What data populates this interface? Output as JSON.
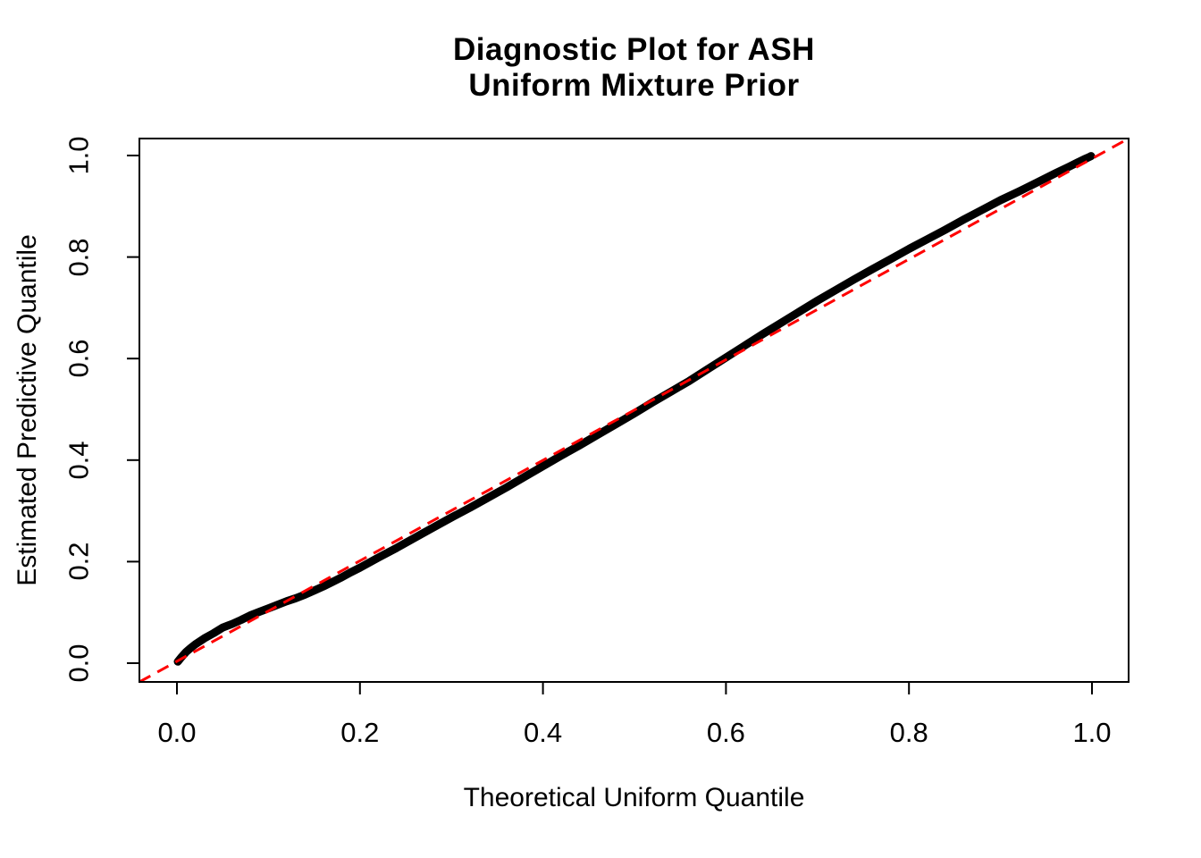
{
  "chart_data": {
    "type": "scatter",
    "subtype": "qq-plot",
    "title_line1": "Diagnostic Plot for ASH",
    "title_line2": "Uniform Mixture Prior",
    "xlabel": "Theoretical Uniform Quantile",
    "ylabel": "Estimated Predictive Quantile",
    "xlim": [
      -0.04,
      1.04
    ],
    "ylim": [
      -0.04,
      1.04
    ],
    "grid": false,
    "legend_position": "none",
    "x_ticks": {
      "values": [
        0.0,
        0.2,
        0.4,
        0.6,
        0.8,
        1.0
      ],
      "labels": [
        "0.0",
        "0.2",
        "0.4",
        "0.6",
        "0.8",
        "1.0"
      ]
    },
    "y_ticks": {
      "values": [
        0.0,
        0.2,
        0.4,
        0.6,
        0.8,
        1.0
      ],
      "labels": [
        "0.0",
        "0.2",
        "0.4",
        "0.6",
        "0.8",
        "1.0"
      ]
    },
    "reference_line": {
      "type": "identity",
      "equation": "y = x",
      "color": "#FF0000",
      "style": "dashed"
    },
    "series": [
      {
        "name": "estimated predictive quantiles",
        "color": "#000000",
        "marker": "point",
        "points": [
          [
            0.001,
            0.003
          ],
          [
            0.005,
            0.012
          ],
          [
            0.01,
            0.022
          ],
          [
            0.015,
            0.03
          ],
          [
            0.02,
            0.037
          ],
          [
            0.03,
            0.049
          ],
          [
            0.04,
            0.059
          ],
          [
            0.05,
            0.07
          ],
          [
            0.06,
            0.077
          ],
          [
            0.07,
            0.085
          ],
          [
            0.08,
            0.094
          ],
          [
            0.09,
            0.101
          ],
          [
            0.1,
            0.108
          ],
          [
            0.11,
            0.115
          ],
          [
            0.12,
            0.122
          ],
          [
            0.13,
            0.128
          ],
          [
            0.14,
            0.135
          ],
          [
            0.15,
            0.143
          ],
          [
            0.16,
            0.151
          ],
          [
            0.17,
            0.16
          ],
          [
            0.18,
            0.169
          ],
          [
            0.19,
            0.179
          ],
          [
            0.2,
            0.188
          ],
          [
            0.22,
            0.208
          ],
          [
            0.24,
            0.227
          ],
          [
            0.26,
            0.247
          ],
          [
            0.28,
            0.267
          ],
          [
            0.3,
            0.287
          ],
          [
            0.32,
            0.306
          ],
          [
            0.34,
            0.326
          ],
          [
            0.36,
            0.346
          ],
          [
            0.38,
            0.367
          ],
          [
            0.4,
            0.388
          ],
          [
            0.42,
            0.409
          ],
          [
            0.44,
            0.429
          ],
          [
            0.46,
            0.45
          ],
          [
            0.48,
            0.471
          ],
          [
            0.5,
            0.492
          ],
          [
            0.52,
            0.514
          ],
          [
            0.54,
            0.535
          ],
          [
            0.56,
            0.556
          ],
          [
            0.58,
            0.579
          ],
          [
            0.6,
            0.602
          ],
          [
            0.62,
            0.625
          ],
          [
            0.64,
            0.648
          ],
          [
            0.66,
            0.67
          ],
          [
            0.68,
            0.692
          ],
          [
            0.7,
            0.714
          ],
          [
            0.72,
            0.735
          ],
          [
            0.74,
            0.756
          ],
          [
            0.76,
            0.776
          ],
          [
            0.78,
            0.796
          ],
          [
            0.8,
            0.816
          ],
          [
            0.82,
            0.835
          ],
          [
            0.84,
            0.854
          ],
          [
            0.86,
            0.874
          ],
          [
            0.88,
            0.893
          ],
          [
            0.9,
            0.912
          ],
          [
            0.92,
            0.929
          ],
          [
            0.94,
            0.947
          ],
          [
            0.96,
            0.965
          ],
          [
            0.975,
            0.978
          ],
          [
            0.985,
            0.987
          ],
          [
            0.992,
            0.993
          ],
          [
            0.997,
            0.997
          ],
          [
            0.999,
            0.999
          ]
        ]
      }
    ]
  },
  "colors": {
    "background": "#FFFFFF",
    "axis": "#000000",
    "curve": "#000000",
    "reference": "#FF0000"
  }
}
